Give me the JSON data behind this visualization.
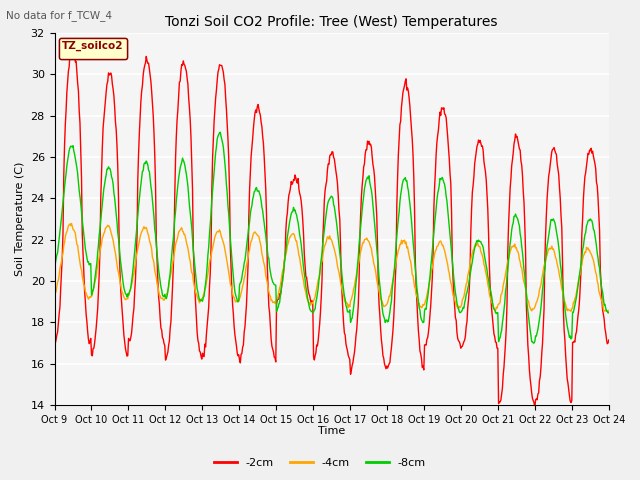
{
  "title": "Tonzi Soil CO2 Profile: Tree (West) Temperatures",
  "subtitle": "No data for f_TCW_4",
  "ylabel": "Soil Temperature (C)",
  "xlabel": "Time",
  "ylim": [
    14,
    32
  ],
  "yticks": [
    14,
    16,
    18,
    20,
    22,
    24,
    26,
    28,
    30,
    32
  ],
  "x_labels": [
    "Oct 9",
    "Oct 10",
    "Oct 11",
    "Oct 12",
    "Oct 13",
    "Oct 14",
    "Oct 15",
    "Oct 16",
    "Oct 17",
    "Oct 18",
    "Oct 19",
    "Oct 20",
    "Oct 21",
    "Oct 22",
    "Oct 23",
    "Oct 24"
  ],
  "legend_label_box": "TZ_soilco2",
  "legend_entries": [
    "-2cm",
    "-4cm",
    "-8cm"
  ],
  "legend_colors": [
    "#ff0000",
    "#ffa500",
    "#00cc00"
  ],
  "bg_color": "#f0f0f0",
  "plot_bg_color": "#f5f5f5",
  "grid_color": "#ffffff",
  "series_colors": [
    "#ff0000",
    "#ffa500",
    "#00cc00"
  ],
  "days": 15,
  "samples_per_day": 48
}
